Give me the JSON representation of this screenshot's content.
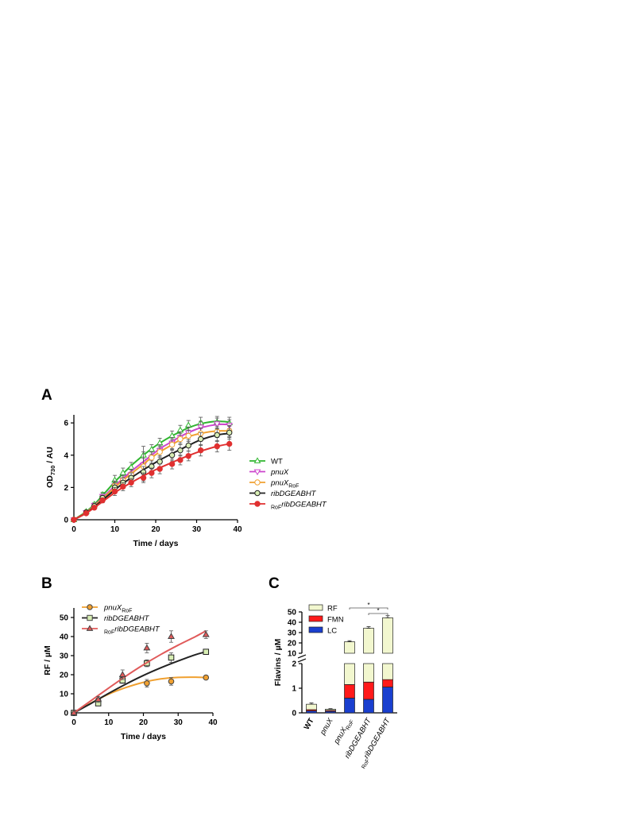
{
  "chart_data": [
    {
      "panel": "A",
      "type": "line",
      "xlabel": "Time / days",
      "ylabel_main": "OD",
      "ylabel_sub": "730",
      "ylabel_rest": " / AU",
      "xlim": [
        0,
        40
      ],
      "ylim": [
        0,
        6.5
      ],
      "xticks": [
        0,
        10,
        20,
        30,
        40
      ],
      "yticks": [
        0,
        2,
        4,
        6
      ],
      "legend_position": "right",
      "x": [
        0,
        3,
        5,
        7,
        10,
        12,
        14,
        17,
        19,
        21,
        24,
        26,
        28,
        31,
        35,
        38
      ],
      "series": [
        {
          "name": "WT",
          "style": "plain",
          "marker": "triangle-up",
          "color": "#2fb52f",
          "fill": "#ffffff",
          "values": [
            0,
            0.5,
            0.95,
            1.55,
            2.45,
            2.9,
            3.25,
            4.0,
            4.35,
            4.75,
            5.2,
            5.55,
            5.85,
            6.0,
            6.05,
            6.0
          ],
          "err": [
            0.05,
            0.1,
            0.1,
            0.15,
            0.3,
            0.3,
            0.3,
            0.55,
            0.3,
            0.3,
            0.3,
            0.3,
            0.3,
            0.35,
            0.35,
            0.35
          ],
          "fit": [
            0,
            0.5,
            0.95,
            1.5,
            2.35,
            2.85,
            3.35,
            4.0,
            4.4,
            4.75,
            5.2,
            5.45,
            5.7,
            5.95,
            6.1,
            6.05
          ]
        },
        {
          "name": "pnuX",
          "style": "italic",
          "marker": "triangle-down",
          "color": "#cc44cc",
          "fill": "#ffffff",
          "values": [
            0,
            0.45,
            0.9,
            1.45,
            2.1,
            2.45,
            2.8,
            3.4,
            3.85,
            4.3,
            4.75,
            5.1,
            5.4,
            5.75,
            5.95,
            5.85
          ],
          "err": [
            0.05,
            0.1,
            0.1,
            0.15,
            0.3,
            0.3,
            0.3,
            0.4,
            0.35,
            0.35,
            0.35,
            0.35,
            0.35,
            0.35,
            0.35,
            0.35
          ],
          "fit": [
            0,
            0.45,
            0.88,
            1.35,
            2.1,
            2.55,
            3.0,
            3.6,
            4.0,
            4.4,
            4.85,
            5.15,
            5.4,
            5.7,
            5.9,
            5.9
          ]
        },
        {
          "name": "pnuX",
          "name_sub": "RoF",
          "style": "italic-sub",
          "marker": "circle",
          "color": "#f0a030",
          "fill": "#ffffff",
          "values": [
            0,
            0.45,
            0.85,
            1.35,
            2.1,
            2.45,
            2.8,
            3.3,
            3.85,
            4.2,
            4.65,
            5.0,
            5.2,
            5.35,
            5.45,
            5.5
          ],
          "err": [
            0.05,
            0.1,
            0.1,
            0.15,
            0.3,
            0.3,
            0.3,
            0.9,
            0.35,
            0.35,
            0.35,
            0.35,
            0.35,
            0.35,
            0.35,
            0.35
          ],
          "fit": [
            0,
            0.45,
            0.85,
            1.3,
            2.0,
            2.45,
            2.85,
            3.45,
            3.85,
            4.2,
            4.65,
            4.95,
            5.15,
            5.35,
            5.5,
            5.5
          ]
        },
        {
          "name": "ribDGEABHT",
          "style": "italic",
          "marker": "circle",
          "color": "#222222",
          "fill": "#d8eeb4",
          "values": [
            0,
            0.45,
            0.85,
            1.35,
            2.0,
            2.3,
            2.6,
            2.95,
            3.3,
            3.6,
            4.0,
            4.3,
            4.6,
            5.0,
            5.25,
            5.4
          ],
          "err": [
            0.05,
            0.1,
            0.1,
            0.15,
            0.3,
            0.3,
            0.3,
            0.35,
            0.35,
            0.35,
            0.35,
            0.35,
            0.35,
            0.4,
            0.4,
            0.4
          ],
          "fit": [
            0,
            0.42,
            0.8,
            1.22,
            1.85,
            2.25,
            2.6,
            3.1,
            3.4,
            3.7,
            4.1,
            4.35,
            4.6,
            4.95,
            5.25,
            5.35
          ]
        },
        {
          "name": "ribDGEABHT",
          "name_pre": "RoF",
          "style": "prefix-italic",
          "marker": "circle",
          "color": "#e03030",
          "fill": "#e03030",
          "values": [
            0,
            0.4,
            0.75,
            1.2,
            1.75,
            2.05,
            2.3,
            2.6,
            2.9,
            3.15,
            3.45,
            3.7,
            3.95,
            4.3,
            4.55,
            4.7
          ],
          "err": [
            0.05,
            0.1,
            0.1,
            0.15,
            0.25,
            0.25,
            0.25,
            0.3,
            0.3,
            0.3,
            0.3,
            0.3,
            0.3,
            0.35,
            0.35,
            0.4
          ],
          "fit": [
            0,
            0.4,
            0.75,
            1.12,
            1.68,
            2.0,
            2.3,
            2.72,
            2.98,
            3.22,
            3.55,
            3.77,
            3.97,
            4.25,
            4.55,
            4.7
          ]
        }
      ]
    },
    {
      "panel": "B",
      "type": "scatter",
      "xlabel": "Time / days",
      "ylabel": "RF / µM",
      "xlim": [
        0,
        40
      ],
      "ylim": [
        0,
        55
      ],
      "xticks": [
        0,
        10,
        20,
        30,
        40
      ],
      "yticks": [
        0,
        10,
        20,
        30,
        40,
        50
      ],
      "legend_position": "top-left",
      "x": [
        0,
        7,
        14,
        21,
        28,
        38
      ],
      "series": [
        {
          "name": "pnuX",
          "name_sub": "RoF",
          "style": "italic-sub",
          "marker": "circle",
          "color": "#f0a030",
          "fill": "#f0a030",
          "values": [
            0,
            6.5,
            17.5,
            15.5,
            16.5,
            18.5
          ],
          "err": [
            0.4,
            1.2,
            1.5,
            2.0,
            2.0,
            0.8
          ],
          "fit_x": [
            0,
            5,
            10,
            15,
            20,
            25,
            30,
            35,
            38
          ],
          "fit_y": [
            0,
            5.2,
            9.8,
            13.3,
            16.0,
            17.8,
            18.6,
            18.7,
            18.5
          ]
        },
        {
          "name": "ribDGEABHT",
          "style": "italic",
          "marker": "square",
          "color": "#222222",
          "fill": "#d8eeb4",
          "values": [
            0,
            5.0,
            17.0,
            26.0,
            29.0,
            32.0
          ],
          "err": [
            0.4,
            1.2,
            1.5,
            1.8,
            2.5,
            1.2
          ],
          "fit_x": [
            0,
            5,
            10,
            15,
            20,
            25,
            30,
            35,
            38
          ],
          "fit_y": [
            0,
            5.0,
            10.2,
            15.1,
            19.6,
            23.6,
            27.2,
            30.5,
            32.0
          ]
        },
        {
          "name": "ribDGEABHT",
          "name_pre": "RoF",
          "style": "prefix-italic",
          "marker": "triangle-up",
          "color": "#e05a5a",
          "fill": "#e05a5a",
          "values": [
            0,
            7.0,
            20.0,
            34.0,
            40.0,
            41.0
          ],
          "err": [
            0.4,
            1.5,
            2.5,
            2.5,
            3.0,
            2.0
          ],
          "fit_x": [
            0,
            5,
            10,
            15,
            20,
            25,
            30,
            35,
            38
          ],
          "fit_y": [
            0,
            6.5,
            13.0,
            19.3,
            25.2,
            30.6,
            35.5,
            40.0,
            43.0
          ]
        }
      ]
    },
    {
      "panel": "C",
      "type": "bar",
      "stacked": true,
      "ylabel": "Flavins / µM",
      "y_axis_break": true,
      "yticks_lower": [
        0,
        1,
        2
      ],
      "yticks_upper": [
        10,
        20,
        30,
        40,
        50
      ],
      "legend_position": "top-left",
      "categories": [
        {
          "label": "WT",
          "style": "bold"
        },
        {
          "label": "pnuX",
          "style": "italic"
        },
        {
          "label": "pnuX",
          "sub": "RoF",
          "style": "italic-sub"
        },
        {
          "label": "ribDGEABHT",
          "style": "italic"
        },
        {
          "label": "ribDGEABHT",
          "pre": "RoF",
          "style": "prefix-italic"
        }
      ],
      "series": [
        {
          "name": "LC",
          "color": "#1a3fcf",
          "values": [
            0.08,
            0.06,
            0.6,
            0.55,
            1.05
          ],
          "err": [
            0.02,
            0.02,
            0.08,
            0.08,
            0.1
          ]
        },
        {
          "name": "FMN",
          "color": "#ff1a1a",
          "values": [
            0.05,
            0.04,
            0.55,
            0.7,
            0.3
          ],
          "err": [
            0.02,
            0.02,
            0.08,
            0.1,
            0.08
          ]
        },
        {
          "name": "RF",
          "color": "#f2f7cf",
          "values": [
            0.22,
            0.05,
            20.0,
            33.0,
            43.0
          ],
          "err": [
            0.05,
            0.02,
            1.0,
            1.5,
            2.0
          ]
        }
      ],
      "significance": [
        {
          "from": 2,
          "to": 4,
          "label": "*"
        },
        {
          "from": 3,
          "to": 4,
          "label": "*"
        }
      ]
    }
  ],
  "panels": {
    "a": "A",
    "b": "B",
    "c": "C"
  }
}
